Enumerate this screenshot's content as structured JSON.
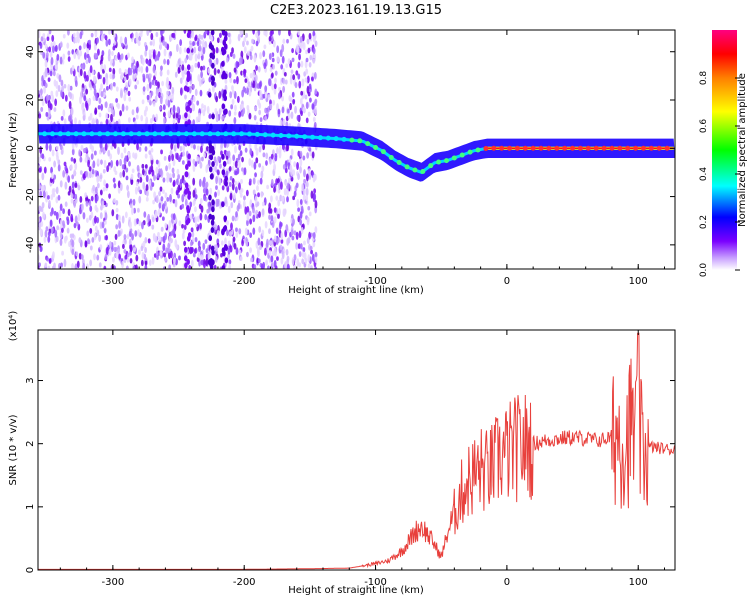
{
  "title": "C2E3.2023.161.19.13.G15",
  "chart_data": [
    {
      "type": "heatmap",
      "xlabel": "Height of straight line (km)",
      "ylabel": "Frequency (Hz)",
      "xlim": [
        -357,
        128
      ],
      "ylim": [
        -50,
        49
      ],
      "xticks": [
        -300,
        -200,
        -100,
        0,
        100
      ],
      "xticklabels": [
        "-300",
        "-200",
        "-100",
        "0",
        "100"
      ],
      "yticks": [
        -40,
        -20,
        0,
        20,
        40
      ],
      "yticklabels": [
        "-40",
        "-20",
        "0",
        "20",
        "40"
      ],
      "ridge": {
        "x": [
          -357,
          -320,
          -280,
          -240,
          -200,
          -160,
          -130,
          -110,
          -95,
          -85,
          -75,
          -65,
          -55,
          -45,
          -35,
          -25,
          -15,
          0,
          40,
          80,
          100,
          128
        ],
        "y": [
          6,
          6,
          6,
          6,
          6,
          5,
          4,
          3,
          -1,
          -5,
          -8,
          -10,
          -6,
          -5,
          -3,
          -1,
          0,
          0,
          0,
          0,
          0,
          0
        ]
      },
      "colorbar": {
        "label": "Normalized spectral amplitude",
        "range": [
          0,
          1
        ],
        "ticks": [
          0.0,
          0.2,
          0.4,
          0.6,
          0.8
        ],
        "ticklabels": [
          "0.0",
          "0.2",
          "0.4",
          "0.6",
          "0.8"
        ],
        "colors": [
          "#ffffff",
          "#c8a0ff",
          "#7a00ff",
          "#0000ff",
          "#00ffff",
          "#00ff00",
          "#ffff00",
          "#ff8000",
          "#ff0000",
          "#ff0080"
        ]
      },
      "grid": false
    },
    {
      "type": "line",
      "xlabel": "Height of straight line (km)",
      "ylabel": "SNR (10 * v/v)",
      "multiplier": "(x10⁴)",
      "xlim": [
        -357,
        128
      ],
      "ylim": [
        0,
        3.8
      ],
      "xticks": [
        -300,
        -200,
        -100,
        0,
        100
      ],
      "xticklabels": [
        "-300",
        "-200",
        "-100",
        "0",
        "100"
      ],
      "yticks": [
        0,
        1,
        2,
        3
      ],
      "yticklabels": [
        "0",
        "1",
        "2",
        "3"
      ],
      "color": "#e8403c",
      "series": [
        {
          "x": [
            -357,
            -300,
            -250,
            -200,
            -150,
            -120,
            -100,
            -90,
            -80,
            -75,
            -70,
            -65,
            -60,
            -55,
            -50,
            -45,
            -40,
            -35,
            -30,
            -25,
            -20,
            -15,
            -10,
            -5,
            0,
            10,
            20,
            30,
            40,
            50,
            60,
            70,
            80,
            85,
            90,
            95,
            100,
            105,
            110,
            128
          ],
          "y": [
            0.01,
            0.01,
            0.01,
            0.01,
            0.02,
            0.03,
            0.1,
            0.15,
            0.3,
            0.45,
            0.6,
            0.7,
            0.55,
            0.4,
            0.2,
            0.6,
            0.9,
            1.2,
            1.4,
            1.5,
            1.6,
            1.55,
            1.65,
            1.8,
            1.85,
            1.95,
            2.0,
            2.05,
            2.08,
            2.1,
            2.08,
            2.05,
            2.1,
            2.2,
            2.0,
            2.3,
            2.0,
            1.9,
            1.95,
            1.9
          ]
        }
      ],
      "grid": false
    }
  ]
}
